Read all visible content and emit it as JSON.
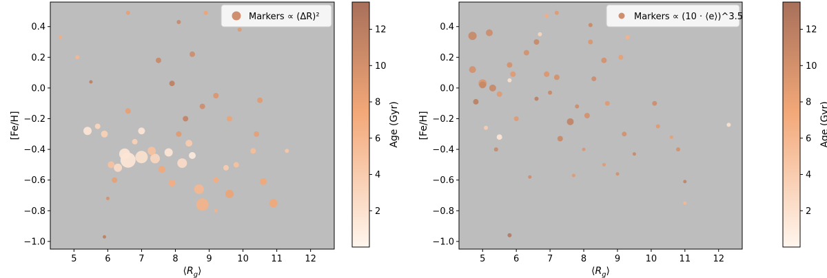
{
  "chart_data": [
    {
      "type": "scatter",
      "title": "",
      "xlabel": "⟨R_g⟩",
      "ylabel": "[Fe/H]",
      "xlim": [
        4.3,
        12.7
      ],
      "ylim": [
        -1.05,
        0.56
      ],
      "xticks": [
        "5",
        "6",
        "7",
        "8",
        "9",
        "10",
        "11",
        "12"
      ],
      "yticks": [
        "0.4",
        "0.2",
        "0.0",
        "−0.2",
        "−0.4",
        "−0.6",
        "−0.8",
        "−1.0"
      ],
      "background_color": "#bdbdbd",
      "grid": false,
      "legend": {
        "placement": "top-right",
        "label": "Markers ∝ (ΔR)²"
      },
      "colorbar": {
        "label": "Age (Gyr)",
        "ticks": [
          "2",
          "4",
          "6",
          "8",
          "10",
          "12"
        ],
        "range": [
          0,
          13.5
        ],
        "low_color": "#fff6ee",
        "high_color": "#a8705a"
      },
      "size_encoding": "(ΔR)²",
      "points": [
        {
          "x": 6.6,
          "y": -0.47,
          "age": 1.5,
          "s": 11
        },
        {
          "x": 7.0,
          "y": -0.45,
          "age": 2.0,
          "s": 9
        },
        {
          "x": 6.5,
          "y": -0.43,
          "age": 1.5,
          "s": 8
        },
        {
          "x": 5.4,
          "y": -0.28,
          "age": 1.5,
          "s": 6
        },
        {
          "x": 6.3,
          "y": -0.52,
          "age": 2.5,
          "s": 6
        },
        {
          "x": 7.4,
          "y": -0.46,
          "age": 3.0,
          "s": 7
        },
        {
          "x": 8.8,
          "y": -0.76,
          "age": 6.5,
          "s": 9
        },
        {
          "x": 10.9,
          "y": -0.75,
          "age": 7.5,
          "s": 6
        },
        {
          "x": 8.7,
          "y": -0.66,
          "age": 6.0,
          "s": 7
        },
        {
          "x": 9.6,
          "y": -0.69,
          "age": 8.0,
          "s": 6
        },
        {
          "x": 7.3,
          "y": -0.41,
          "age": 5.0,
          "s": 6
        },
        {
          "x": 8.2,
          "y": -0.49,
          "age": 2.5,
          "s": 7
        },
        {
          "x": 7.9,
          "y": -0.62,
          "age": 7.0,
          "s": 5
        },
        {
          "x": 6.2,
          "y": -0.6,
          "age": 8.5,
          "s": 4
        },
        {
          "x": 10.6,
          "y": -0.61,
          "age": 7.5,
          "s": 5
        },
        {
          "x": 9.2,
          "y": -0.6,
          "age": 7.0,
          "s": 4
        },
        {
          "x": 6.1,
          "y": -0.5,
          "age": 5.0,
          "s": 5
        },
        {
          "x": 8.4,
          "y": -0.36,
          "age": 4.0,
          "s": 5
        },
        {
          "x": 7.0,
          "y": -0.28,
          "age": 1.5,
          "s": 5
        },
        {
          "x": 7.8,
          "y": -0.42,
          "age": 1.5,
          "s": 6
        },
        {
          "x": 8.5,
          "y": -0.44,
          "age": 1.0,
          "s": 5
        },
        {
          "x": 9.5,
          "y": -0.52,
          "age": 4.0,
          "s": 4
        },
        {
          "x": 11.3,
          "y": -0.41,
          "age": 4.5,
          "s": 3
        },
        {
          "x": 10.3,
          "y": -0.41,
          "age": 5.5,
          "s": 4
        },
        {
          "x": 5.9,
          "y": -0.3,
          "age": 3.5,
          "s": 5
        },
        {
          "x": 5.7,
          "y": -0.25,
          "age": 3.0,
          "s": 4
        },
        {
          "x": 7.6,
          "y": -0.53,
          "age": 7.5,
          "s": 5
        },
        {
          "x": 8.1,
          "y": -0.3,
          "age": 9.0,
          "s": 4
        },
        {
          "x": 6.8,
          "y": -0.35,
          "age": 3.5,
          "s": 4
        },
        {
          "x": 9.8,
          "y": -0.5,
          "age": 5.0,
          "s": 4
        },
        {
          "x": 8.8,
          "y": -0.12,
          "age": 10.5,
          "s": 4
        },
        {
          "x": 7.5,
          "y": 0.18,
          "age": 11.0,
          "s": 4
        },
        {
          "x": 8.5,
          "y": 0.22,
          "age": 10.5,
          "s": 4
        },
        {
          "x": 9.2,
          "y": -0.05,
          "age": 9.5,
          "s": 4
        },
        {
          "x": 6.6,
          "y": -0.15,
          "age": 8.5,
          "s": 4
        },
        {
          "x": 7.9,
          "y": 0.03,
          "age": 12.0,
          "s": 4
        },
        {
          "x": 10.4,
          "y": -0.3,
          "age": 8.5,
          "s": 4
        },
        {
          "x": 10.5,
          "y": -0.08,
          "age": 9.0,
          "s": 4
        },
        {
          "x": 5.1,
          "y": 0.2,
          "age": 6.0,
          "s": 3
        },
        {
          "x": 5.9,
          "y": -0.97,
          "age": 12.0,
          "s": 2.5
        },
        {
          "x": 9.2,
          "y": -0.8,
          "age": 6.5,
          "s": 2.5
        },
        {
          "x": 6.0,
          "y": -0.72,
          "age": 10.0,
          "s": 2.5
        },
        {
          "x": 9.9,
          "y": 0.38,
          "age": 9.0,
          "s": 3
        },
        {
          "x": 6.6,
          "y": 0.49,
          "age": 8.5,
          "s": 3
        },
        {
          "x": 8.9,
          "y": 0.49,
          "age": 8.0,
          "s": 3
        },
        {
          "x": 8.1,
          "y": 0.43,
          "age": 11.0,
          "s": 3
        },
        {
          "x": 4.6,
          "y": 0.33,
          "age": 7.0,
          "s": 2.5
        },
        {
          "x": 5.5,
          "y": 0.04,
          "age": 12.0,
          "s": 2.5
        },
        {
          "x": 9.6,
          "y": -0.2,
          "age": 8.0,
          "s": 4
        },
        {
          "x": 8.3,
          "y": -0.2,
          "age": 11.5,
          "s": 4
        }
      ]
    },
    {
      "type": "scatter",
      "title": "",
      "xlabel": "⟨R_g⟩",
      "ylabel": "[Fe/H]",
      "xlim": [
        4.3,
        12.7
      ],
      "ylim": [
        -1.05,
        0.56
      ],
      "xticks": [
        "5",
        "6",
        "7",
        "8",
        "9",
        "10",
        "11",
        "12"
      ],
      "yticks": [
        "0.4",
        "0.2",
        "0.0",
        "−0.2",
        "−0.4",
        "−0.6",
        "−0.8",
        "−1.0"
      ],
      "background_color": "#bdbdbd",
      "grid": false,
      "legend": {
        "placement": "top-right",
        "label": "Markers ∝ (10 · ⟨e⟩)^3.5"
      },
      "colorbar": {
        "label": "Age (Gyr)",
        "ticks": [
          "2",
          "4",
          "6",
          "8",
          "10",
          "12"
        ],
        "range": [
          0,
          13.5
        ],
        "low_color": "#fff6ee",
        "high_color": "#a8705a"
      },
      "size_encoding": "(10 · ⟨e⟩)^3.5",
      "points": [
        {
          "x": 4.7,
          "y": 0.34,
          "age": 11.0,
          "s": 6
        },
        {
          "x": 5.2,
          "y": 0.36,
          "age": 10.5,
          "s": 5
        },
        {
          "x": 4.7,
          "y": 0.12,
          "age": 10.0,
          "s": 5
        },
        {
          "x": 5.0,
          "y": 0.03,
          "age": 9.5,
          "s": 6
        },
        {
          "x": 5.0,
          "y": 0.02,
          "age": 11.0,
          "s": 5
        },
        {
          "x": 5.3,
          "y": 0.0,
          "age": 11.0,
          "s": 5
        },
        {
          "x": 4.8,
          "y": -0.09,
          "age": 12.0,
          "s": 4
        },
        {
          "x": 5.5,
          "y": -0.04,
          "age": 9.0,
          "s": 4
        },
        {
          "x": 5.5,
          "y": -0.32,
          "age": 1.5,
          "s": 4
        },
        {
          "x": 5.4,
          "y": -0.4,
          "age": 11.0,
          "s": 3
        },
        {
          "x": 5.8,
          "y": 0.15,
          "age": 10.0,
          "s": 4
        },
        {
          "x": 5.9,
          "y": 0.09,
          "age": 9.0,
          "s": 4
        },
        {
          "x": 6.3,
          "y": 0.23,
          "age": 10.0,
          "s": 4
        },
        {
          "x": 6.6,
          "y": 0.3,
          "age": 11.0,
          "s": 4
        },
        {
          "x": 6.9,
          "y": 0.09,
          "age": 9.5,
          "s": 4
        },
        {
          "x": 7.2,
          "y": 0.07,
          "age": 10.0,
          "s": 4
        },
        {
          "x": 7.6,
          "y": -0.22,
          "age": 11.5,
          "s": 5
        },
        {
          "x": 7.3,
          "y": -0.33,
          "age": 11.0,
          "s": 4
        },
        {
          "x": 8.1,
          "y": -0.18,
          "age": 10.0,
          "s": 4
        },
        {
          "x": 8.6,
          "y": 0.18,
          "age": 10.0,
          "s": 4
        },
        {
          "x": 8.7,
          "y": -0.1,
          "age": 9.0,
          "s": 3.5
        },
        {
          "x": 8.2,
          "y": 0.3,
          "age": 9.5,
          "s": 3.5
        },
        {
          "x": 8.3,
          "y": 0.06,
          "age": 10.5,
          "s": 3.5
        },
        {
          "x": 9.1,
          "y": 0.2,
          "age": 8.5,
          "s": 3.5
        },
        {
          "x": 9.2,
          "y": -0.3,
          "age": 10.0,
          "s": 3.5
        },
        {
          "x": 10.1,
          "y": -0.1,
          "age": 10.5,
          "s": 3.5
        },
        {
          "x": 10.2,
          "y": -0.25,
          "age": 9.0,
          "s": 3
        },
        {
          "x": 10.8,
          "y": -0.4,
          "age": 10.0,
          "s": 3
        },
        {
          "x": 11.0,
          "y": -0.61,
          "age": 11.5,
          "s": 2.5
        },
        {
          "x": 12.3,
          "y": -0.24,
          "age": 2.0,
          "s": 3
        },
        {
          "x": 5.8,
          "y": -0.96,
          "age": 12.5,
          "s": 3
        },
        {
          "x": 6.9,
          "y": 0.47,
          "age": 7.0,
          "s": 3
        },
        {
          "x": 7.2,
          "y": 0.49,
          "age": 9.0,
          "s": 3
        },
        {
          "x": 8.2,
          "y": 0.41,
          "age": 11.0,
          "s": 3
        },
        {
          "x": 9.3,
          "y": 0.33,
          "age": 6.5,
          "s": 3
        },
        {
          "x": 6.7,
          "y": 0.35,
          "age": 3.0,
          "s": 3
        },
        {
          "x": 5.1,
          "y": -0.26,
          "age": 4.0,
          "s": 3
        },
        {
          "x": 6.0,
          "y": -0.2,
          "age": 9.0,
          "s": 3.5
        },
        {
          "x": 6.6,
          "y": -0.07,
          "age": 12.0,
          "s": 3
        },
        {
          "x": 7.0,
          "y": -0.03,
          "age": 11.0,
          "s": 3
        },
        {
          "x": 7.8,
          "y": -0.12,
          "age": 10.5,
          "s": 3
        },
        {
          "x": 8.0,
          "y": -0.4,
          "age": 9.5,
          "s": 2.5
        },
        {
          "x": 8.6,
          "y": -0.5,
          "age": 9.0,
          "s": 2.5
        },
        {
          "x": 9.0,
          "y": -0.56,
          "age": 10.0,
          "s": 2.5
        },
        {
          "x": 9.5,
          "y": -0.43,
          "age": 11.0,
          "s": 2.5
        },
        {
          "x": 10.6,
          "y": -0.32,
          "age": 8.5,
          "s": 2.5
        },
        {
          "x": 11.0,
          "y": -0.75,
          "age": 6.0,
          "s": 2.5
        },
        {
          "x": 7.7,
          "y": -0.57,
          "age": 9.0,
          "s": 2.5
        },
        {
          "x": 6.4,
          "y": -0.58,
          "age": 10.5,
          "s": 2.5
        },
        {
          "x": 5.8,
          "y": 0.05,
          "age": 2.0,
          "s": 3
        }
      ]
    }
  ]
}
